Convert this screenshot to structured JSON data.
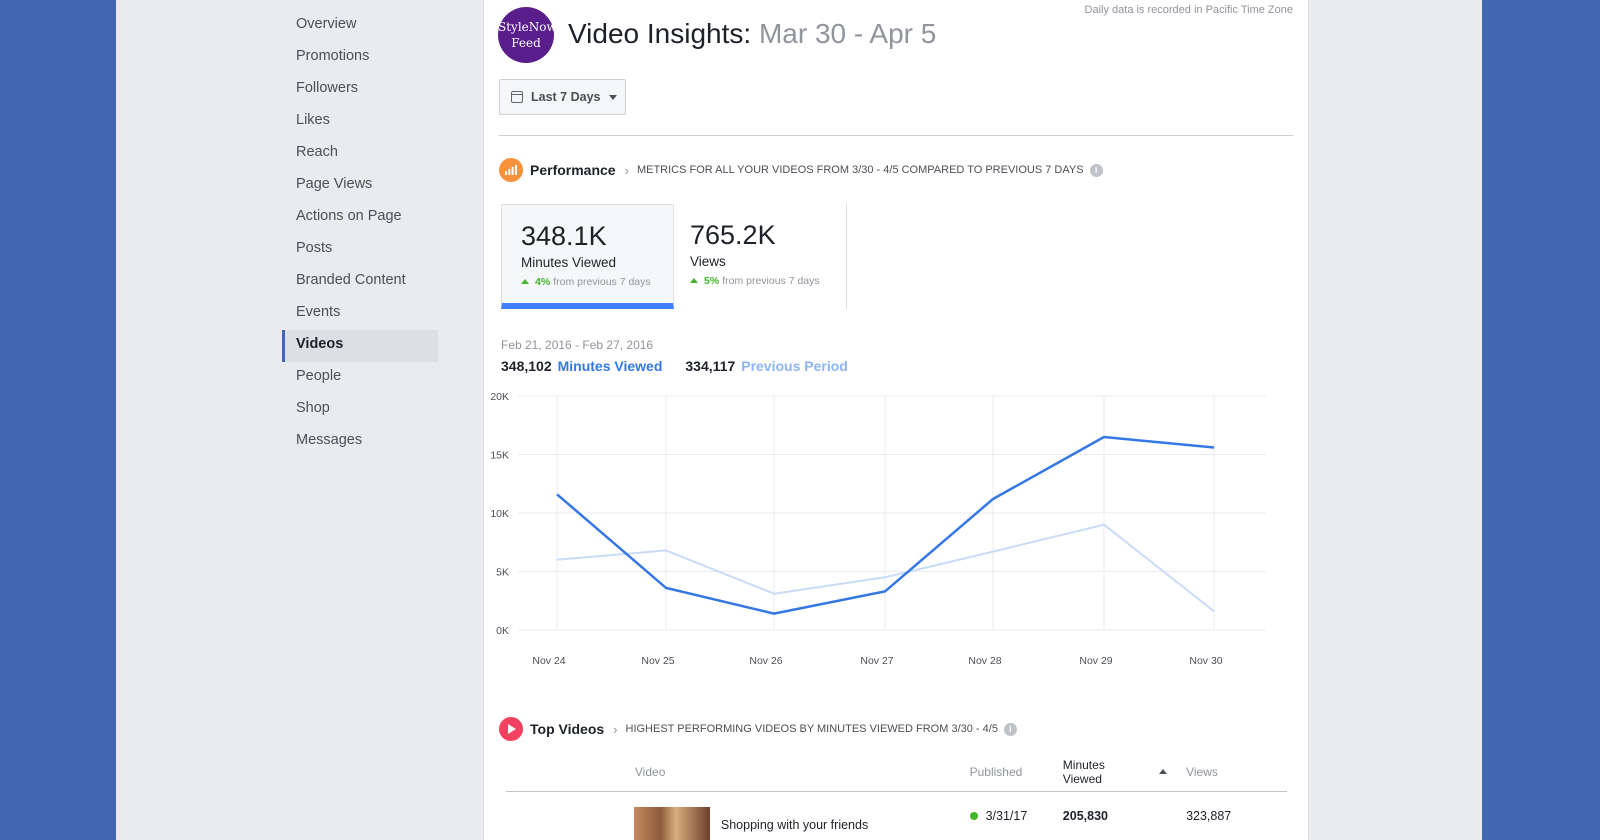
{
  "sidebar": {
    "items": [
      {
        "label": "Overview"
      },
      {
        "label": "Promotions"
      },
      {
        "label": "Followers"
      },
      {
        "label": "Likes"
      },
      {
        "label": "Reach"
      },
      {
        "label": "Page Views"
      },
      {
        "label": "Actions on Page"
      },
      {
        "label": "Posts"
      },
      {
        "label": "Branded Content"
      },
      {
        "label": "Events"
      },
      {
        "label": "Videos",
        "active": true
      },
      {
        "label": "People"
      },
      {
        "label": "Shop"
      },
      {
        "label": "Messages"
      }
    ]
  },
  "header": {
    "timezone_note": "Daily data is recorded in Pacific Time Zone",
    "avatar_line1": "StyleNow",
    "avatar_line2": "Feed",
    "title": "Video Insights:",
    "date_range": "Mar 30 - Apr 5",
    "period_dropdown": "Last 7 Days"
  },
  "performance": {
    "title": "Performance",
    "subtitle": "Metrics for all your videos from 3/30 - 4/5 compared to previous 7 days",
    "info": "i",
    "metrics": [
      {
        "value": "348.1K",
        "label": "Minutes Viewed",
        "change": "4%",
        "change_text": "from previous 7 days",
        "color": "#4080ff"
      },
      {
        "value": "765.2K",
        "label": "Views",
        "change": "5%",
        "change_text": "from previous 7 days"
      }
    ]
  },
  "chart_data": {
    "type": "line",
    "date_range": "Feb 21, 2016 - Feb 27, 2016",
    "x": [
      "Nov 24",
      "Nov 25",
      "Nov 26",
      "Nov 27",
      "Nov 28",
      "Nov 29",
      "Nov 30"
    ],
    "yticks": [
      "20K",
      "15K",
      "10K",
      "5K",
      "0K"
    ],
    "ylim": [
      0,
      20000
    ],
    "grid": true,
    "series": [
      {
        "name": "Minutes Viewed",
        "total": "348,102",
        "color": "#3578e5",
        "values": [
          11600,
          3600,
          1400,
          3300,
          11200,
          16500,
          15600
        ]
      },
      {
        "name": "Previous Period",
        "total": "334,117",
        "color": "#c9dbf7",
        "values": [
          6000,
          6800,
          3100,
          4500,
          6700,
          9000,
          1600
        ]
      }
    ]
  },
  "top_videos": {
    "title": "Top Videos",
    "subtitle": "Highest performing videos by minutes viewed from 3/30 - 4/5",
    "info": "i",
    "columns": {
      "video": "Video",
      "published": "Published",
      "minutes": "Minutes Viewed",
      "views": "Views"
    },
    "rows": [
      {
        "title": "Shopping with your friends",
        "published": "3/31/17",
        "minutes": "205,830",
        "views": "323,887"
      }
    ]
  }
}
